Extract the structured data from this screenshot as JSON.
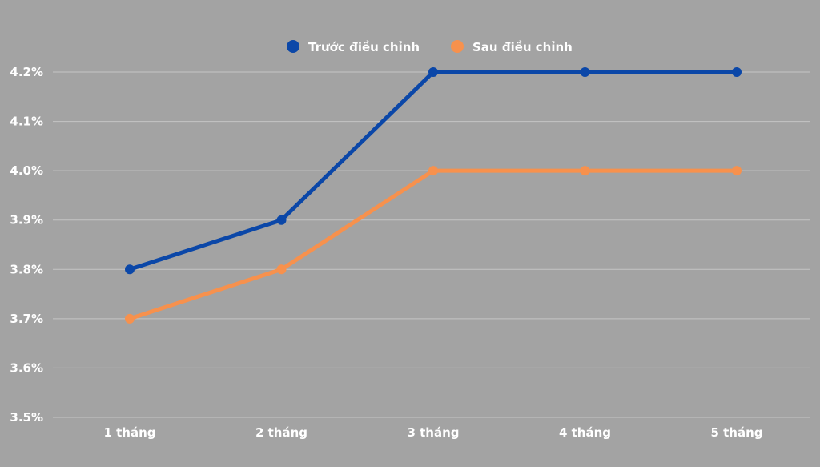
{
  "chart_data": {
    "type": "line",
    "categories": [
      "1 tháng",
      "2 tháng",
      "3 tháng",
      "4 tháng",
      "5 tháng"
    ],
    "series": [
      {
        "name": "Trước điều chỉnh",
        "color": "#0b47a8",
        "values": [
          3.8,
          3.9,
          4.2,
          4.2,
          4.2
        ]
      },
      {
        "name": "Sau điều chỉnh",
        "color": "#f7914d",
        "values": [
          3.7,
          3.8,
          4.0,
          4.0,
          4.0
        ]
      }
    ],
    "y_ticks": [
      "3.5%",
      "3.6%",
      "3.7%",
      "3.8%",
      "3.9%",
      "4.0%",
      "4.1%",
      "4.2%"
    ],
    "ylim": [
      3.5,
      4.2
    ],
    "grid": true,
    "legend_position": "top-center",
    "background": "#a3a3a3"
  }
}
